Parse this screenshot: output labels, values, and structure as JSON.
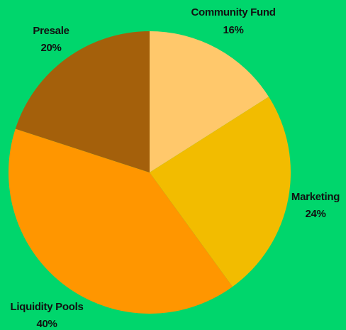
{
  "page": {
    "background": "#00d66c"
  },
  "chart_data": {
    "type": "pie",
    "title": "",
    "start_angle_deg": 0,
    "direction": "clockwise",
    "slices": [
      {
        "label": "Community Fund",
        "value": 16,
        "value_label": "16%",
        "color": "#ffc86b"
      },
      {
        "label": "Marketing",
        "value": 24,
        "value_label": "24%",
        "color": "#f2bc00"
      },
      {
        "label": "Liquidity Pools",
        "value": 40,
        "value_label": "40%",
        "color": "#ff9600"
      },
      {
        "label": "Presale",
        "value": 20,
        "value_label": "20%",
        "color": "#a4600b"
      }
    ]
  }
}
